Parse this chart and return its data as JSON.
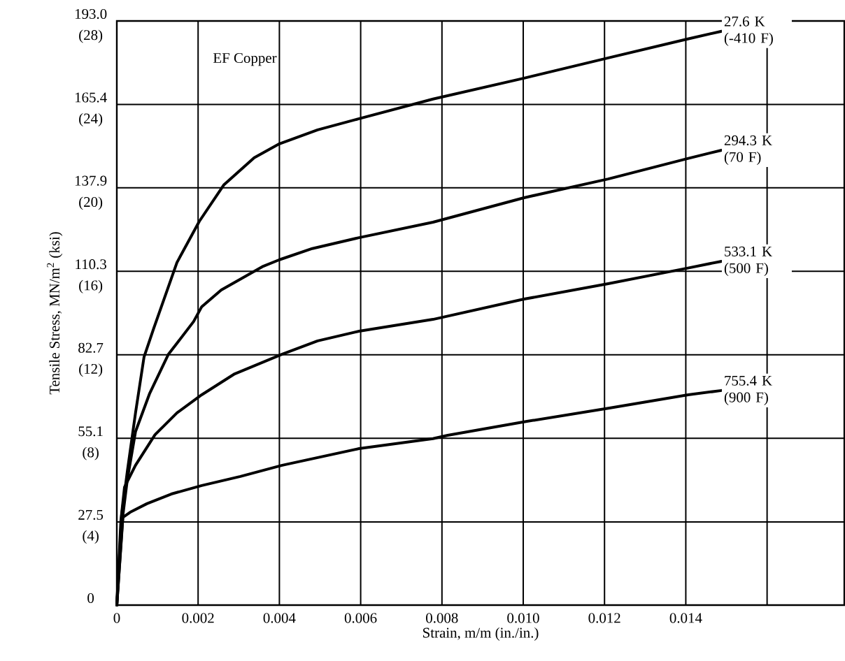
{
  "chart_data": {
    "type": "line",
    "xlabel": "Strain, m/m (in./in.)",
    "y2label": "Tensile Stress, MN/m$^{2}$ (ksi)",
    "annotations": [
      "EF Copper"
    ],
    "xlim": [
      0,
      0.0179
    ],
    "ylim": [
      0,
      193.0
    ],
    "xticks": [
      {
        "value": 0,
        "label": "0"
      },
      {
        "value": 0.002,
        "label": "0.002"
      },
      {
        "value": 0.004,
        "label": "0.004"
      },
      {
        "value": 0.006,
        "label": "0.006"
      },
      {
        "value": 0.008,
        "label": "0.008"
      },
      {
        "value": 0.01,
        "label": "0.010"
      },
      {
        "value": 0.012,
        "label": "0.012"
      },
      {
        "value": 0.014,
        "label": "0.014"
      },
      {
        "value": 0.016,
        "label": null
      }
    ],
    "yticks": [
      0,
      27.5,
      55.1,
      82.7,
      110.3,
      137.9,
      165.4,
      {
        "value": 193.0,
        "label": "193.0"
      }
    ],
    "y2lim": [
      0,
      28
    ],
    "y2ticks": [
      {
        "value": 4,
        "label": "(4)"
      },
      {
        "value": 8,
        "label": "(8)"
      },
      {
        "value": 12,
        "label": "(12)"
      },
      {
        "value": 16,
        "label": "(16)"
      },
      {
        "value": 20,
        "label": "(20)"
      },
      {
        "value": 24,
        "label": "(24)"
      },
      {
        "value": 28,
        "label": "(28)"
      }
    ],
    "grid": true,
    "series": [
      {
        "name": "27.6 K (-410 F)",
        "color": "#000000",
        "x": [
          0,
          0.00012,
          0.00026,
          0.00046,
          0.00067,
          0.00091,
          0.00148,
          0.00203,
          0.00263,
          0.00338,
          0.004,
          0.00494,
          0.00596,
          0.00778,
          0.01002,
          0.01209,
          0.01403,
          0.01488
        ],
        "values": [
          0,
          29.8,
          44.3,
          63.5,
          82.0,
          91.5,
          113.2,
          126.8,
          138.8,
          147.8,
          152.4,
          157.0,
          160.7,
          167.2,
          174.1,
          180.8,
          187.0,
          189.6
        ]
      },
      {
        "name": "294.3 K (70 F)",
        "color": "#000000",
        "x": [
          0,
          0.00015,
          0.00026,
          0.00046,
          0.00081,
          0.00127,
          0.00148,
          0.00189,
          0.00209,
          0.00257,
          0.00358,
          0.004,
          0.00481,
          0.00596,
          0.00778,
          0.01002,
          0.01209,
          0.01403,
          0.01488
        ],
        "values": [
          0,
          29.8,
          41.6,
          57.3,
          70.0,
          82.9,
          86.5,
          93.7,
          98.6,
          104.1,
          111.8,
          114.1,
          117.8,
          121.4,
          126.5,
          134.6,
          140.8,
          147.5,
          150.3
        ]
      },
      {
        "name": "533.1 K (500 F)",
        "color": "#000000",
        "x": [
          0,
          0.0001,
          0.00019,
          0.00046,
          0.00094,
          0.00148,
          0.00209,
          0.0029,
          0.00407,
          0.00494,
          0.00596,
          0.00778,
          0.01002,
          0.01209,
          0.01403,
          0.01488
        ],
        "values": [
          0,
          27.9,
          39.0,
          46.2,
          56.3,
          63.5,
          69.5,
          76.4,
          82.9,
          87.3,
          90.5,
          94.4,
          101.1,
          106.2,
          111.3,
          113.6
        ]
      },
      {
        "name": "755.4 K (900 F)",
        "color": "#000000",
        "x": [
          0,
          0.00015,
          0.00033,
          0.00074,
          0.00134,
          0.00209,
          0.00304,
          0.00407,
          0.00596,
          0.00778,
          0.00814,
          0.01009,
          0.01212,
          0.01406,
          0.01488
        ],
        "values": [
          0,
          29.0,
          30.7,
          33.5,
          36.7,
          39.5,
          42.5,
          46.2,
          51.7,
          55.0,
          56.1,
          60.7,
          65.1,
          69.5,
          70.9
        ]
      }
    ]
  }
}
